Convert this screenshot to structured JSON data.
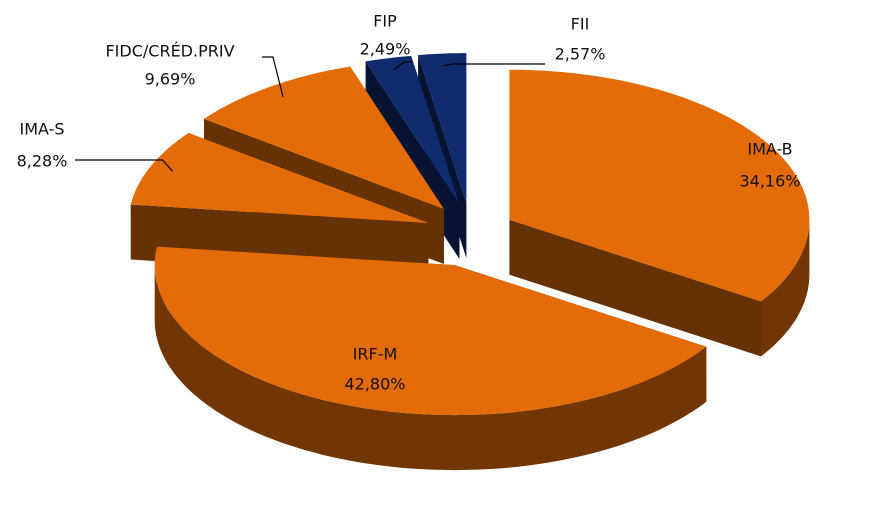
{
  "chart_data": {
    "type": "pie",
    "categories": [
      "IMA-B",
      "IRF-M",
      "IMA-S",
      "FIDC/CRÉD.PRIV",
      "FIP",
      "FII"
    ],
    "values": [
      34.16,
      42.8,
      8.28,
      9.69,
      2.49,
      2.57
    ],
    "value_labels": [
      "34,16%",
      "42,80%",
      "8,28%",
      "9,69%",
      "2,49%",
      "2,57%"
    ],
    "colors": [
      "#e36c09",
      "#e36c09",
      "#e36c09",
      "#e36c09",
      "#0f2b6e",
      "#0f2b6e"
    ]
  }
}
